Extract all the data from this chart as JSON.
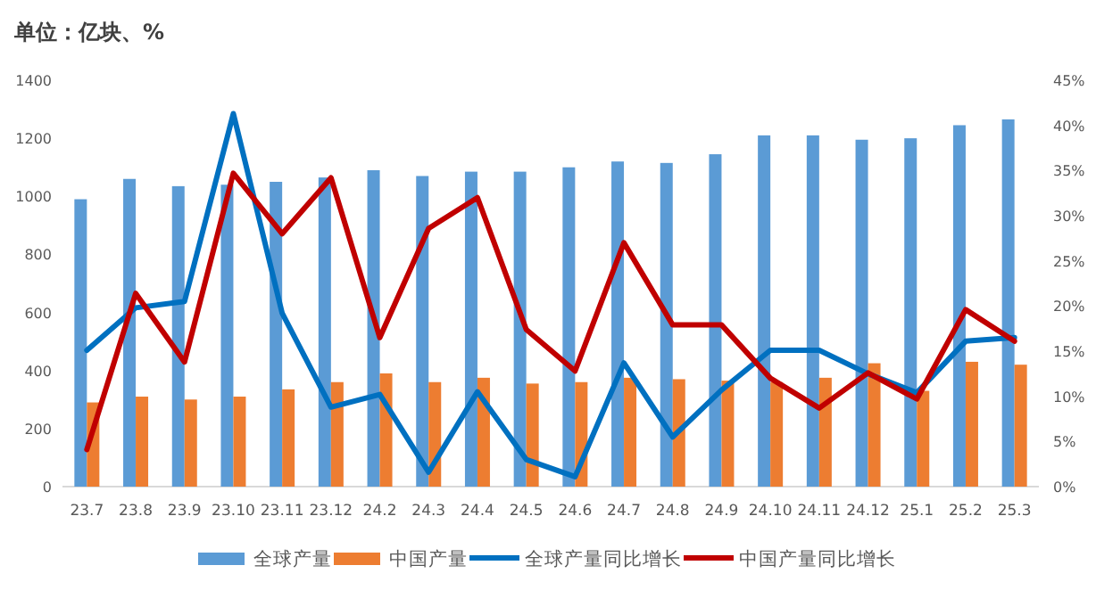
{
  "chart_data": {
    "type": "bar",
    "ylabel": "单位：亿块、%",
    "categories": [
      "23.7",
      "23.8",
      "23.9",
      "23.10",
      "23.11",
      "23.12",
      "24.2",
      "24.3",
      "24.4",
      "24.5",
      "24.6",
      "24.7",
      "24.8",
      "24.9",
      "24.10",
      "24.11",
      "24.12",
      "25.1",
      "25.2",
      "25.3"
    ],
    "series": [
      {
        "name": "全球产量",
        "color": "#5b9bd5",
        "values": [
          990,
          1060,
          1035,
          1040,
          1050,
          1065,
          1090,
          1070,
          1085,
          1085,
          1100,
          1120,
          1115,
          1145,
          1210,
          1210,
          1195,
          1200,
          1245,
          1265
        ]
      },
      {
        "name": "中国产量",
        "color": "#ed7d31",
        "values": [
          290,
          310,
          300,
          310,
          335,
          360,
          390,
          360,
          375,
          355,
          360,
          375,
          370,
          365,
          360,
          375,
          425,
          330,
          430,
          420
        ]
      },
      {
        "name": "全球产量同比增长",
        "type": "line",
        "axis": "y2",
        "color": "#0070c0",
        "values": [
          15.1,
          19.8,
          20.5,
          41.3,
          19.2,
          8.8,
          10.2,
          1.6,
          10.5,
          3.0,
          1.1,
          13.7,
          5.5,
          10.7,
          15.1,
          15.1,
          12.5,
          10.4,
          16.1,
          16.5
        ]
      },
      {
        "name": "中国产量同比增长",
        "type": "line",
        "axis": "y2",
        "color": "#c00000",
        "values": [
          4.1,
          21.4,
          13.8,
          34.7,
          28.0,
          34.2,
          16.5,
          28.6,
          32.0,
          17.4,
          12.8,
          27.0,
          17.9,
          17.9,
          12.0,
          8.7,
          12.6,
          9.7,
          19.6,
          16.1
        ]
      }
    ],
    "ylim": [
      0,
      1400
    ],
    "yticks": [
      0,
      200,
      400,
      600,
      800,
      1000,
      1200,
      1400
    ],
    "y2lim": [
      0,
      45
    ],
    "y2ticks": [
      {
        "value": 0,
        "label": "0%"
      },
      {
        "value": 5,
        "label": "5%"
      },
      {
        "value": 10,
        "label": "10%"
      },
      {
        "value": 15,
        "label": "15%"
      },
      {
        "value": 20,
        "label": "20%"
      },
      {
        "value": 25,
        "label": "25%"
      },
      {
        "value": 30,
        "label": "30%"
      },
      {
        "value": 35,
        "label": "35%"
      },
      {
        "value": 40,
        "label": "40%"
      },
      {
        "value": 45,
        "label": "45%"
      }
    ],
    "grid": false,
    "legend": "bottom"
  }
}
